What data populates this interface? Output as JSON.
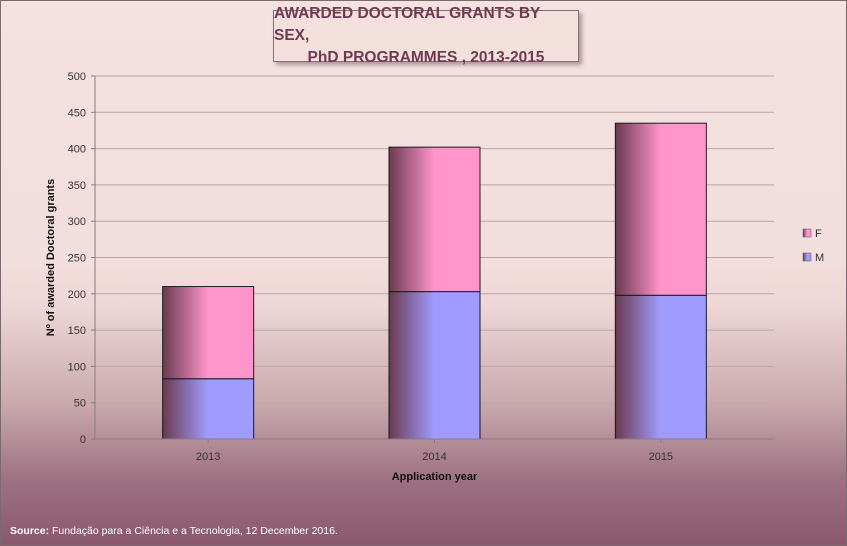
{
  "chart_data": {
    "type": "bar",
    "stacked": true,
    "title_line1": "AWARDED DOCTORAL GRANTS BY SEX,",
    "title_line2": "PhD PROGRAMMES , 2013-2015",
    "categories": [
      "2013",
      "2014",
      "2015"
    ],
    "series": [
      {
        "name": "M",
        "values": [
          83,
          203,
          198
        ],
        "color": "#a09cff"
      },
      {
        "name": "F",
        "values": [
          127,
          199,
          237
        ],
        "color": "#ff95cc"
      }
    ],
    "xlabel": "Application year",
    "ylabel": "Nº of awarded Doctoral grants",
    "ylim": [
      0,
      500
    ],
    "yticks": [
      0,
      50,
      100,
      150,
      200,
      250,
      300,
      350,
      400,
      450,
      500
    ],
    "grid": true,
    "legend_position": "right"
  },
  "source": {
    "label": "Source:",
    "text": " Fundação para a Ciência e a Tecnologia, 12 December 2016."
  },
  "colors": {
    "title_text": "#6e3b52",
    "bar_dark_edge": "#6a3a50"
  }
}
